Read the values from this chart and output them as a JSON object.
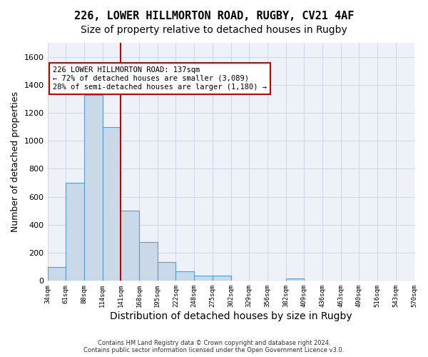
{
  "title1": "226, LOWER HILLMORTON ROAD, RUGBY, CV21 4AF",
  "title2": "Size of property relative to detached houses in Rugby",
  "xlabel": "Distribution of detached houses by size in Rugby",
  "ylabel": "Number of detached properties",
  "footnote": "Contains HM Land Registry data © Crown copyright and database right 2024.\nContains public sector information licensed under the Open Government Licence v3.0.",
  "bin_labels": [
    "34sqm",
    "61sqm",
    "88sqm",
    "114sqm",
    "141sqm",
    "168sqm",
    "195sqm",
    "222sqm",
    "248sqm",
    "275sqm",
    "302sqm",
    "329sqm",
    "356sqm",
    "382sqm",
    "409sqm",
    "436sqm",
    "463sqm",
    "490sqm",
    "516sqm",
    "543sqm",
    "570sqm"
  ],
  "bar_values": [
    100,
    700,
    1330,
    1100,
    500,
    275,
    135,
    70,
    35,
    35,
    0,
    0,
    0,
    15,
    0,
    0,
    0,
    0,
    0,
    0
  ],
  "bar_color": "#c9d9e8",
  "bar_edge_color": "#5b9bd5",
  "property_line_x": 4,
  "property_line_color": "#cc0000",
  "annotation_text": "226 LOWER HILLMORTON ROAD: 137sqm\n← 72% of detached houses are smaller (3,089)\n28% of semi-detached houses are larger (1,180) →",
  "annotation_box_color": "#cc0000",
  "ylim": [
    0,
    1700
  ],
  "yticks": [
    0,
    200,
    400,
    600,
    800,
    1000,
    1200,
    1400,
    1600
  ],
  "grid_color": "#d0d8e8",
  "bg_color": "#eef2f8",
  "title1_fontsize": 11,
  "title2_fontsize": 10,
  "ylabel_fontsize": 9,
  "xlabel_fontsize": 10
}
